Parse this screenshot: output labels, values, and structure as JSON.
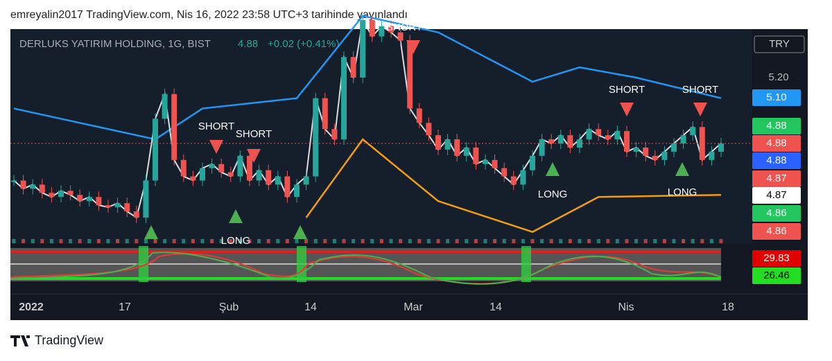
{
  "header": {
    "text": "emreyalin2017 TradingView.com, Nis 16, 2022 23:58 UTC+3 tarihinde yayınlandı"
  },
  "symbol": {
    "name": "DERLUKS YATIRIM HOLDING, 1G, BIST",
    "price": "4.88",
    "change": "+0.02 (+0.41%)"
  },
  "currency": "TRY",
  "price_axis": {
    "ticks": [
      "5.20"
    ]
  },
  "price_labels": [
    "5.10",
    "4.88",
    "4.88",
    "4.88",
    "4.87",
    "4.87",
    "4.86",
    "4.86"
  ],
  "indicator_labels": [
    "29.83",
    "26.46"
  ],
  "time_axis": [
    "2022",
    "17",
    "Şub",
    "14",
    "Mar",
    "14",
    "Nis",
    "18"
  ],
  "signals": [
    "SHORT",
    "SHORT",
    "SHORT",
    "SHORT",
    "SHORT",
    "LONG",
    "LONG",
    "LONG"
  ],
  "closes": [
    4.7,
    4.66,
    4.68,
    4.64,
    4.62,
    4.65,
    4.63,
    4.6,
    4.62,
    4.58,
    4.57,
    4.59,
    4.55,
    4.52,
    4.7,
    5.0,
    5.12,
    4.8,
    4.72,
    4.7,
    4.76,
    4.78,
    4.74,
    4.72,
    4.82,
    4.7,
    4.75,
    4.68,
    4.72,
    4.62,
    4.68,
    4.72,
    5.1,
    4.95,
    4.9,
    5.3,
    5.2,
    5.48,
    5.4,
    5.45,
    5.42,
    5.38,
    5.05,
    4.98,
    4.92,
    4.85,
    4.9,
    4.82,
    4.86,
    4.78,
    4.8,
    4.76,
    4.72,
    4.68,
    4.75,
    4.82,
    4.9,
    4.88,
    4.92,
    4.86,
    4.9,
    4.95,
    4.92,
    4.9,
    4.94,
    4.84,
    4.86,
    4.82,
    4.8,
    4.84,
    4.88,
    4.92,
    4.96,
    4.8,
    4.84,
    4.88
  ],
  "upper_band": {
    "index": [
      0,
      15,
      20,
      30,
      37,
      45,
      55,
      60,
      66,
      75
    ],
    "values": [
      5.05,
      4.9,
      5.05,
      5.1,
      5.5,
      5.42,
      5.18,
      5.25,
      5.2,
      5.1
    ]
  },
  "lower_band": {
    "index": [
      31,
      37,
      45,
      55,
      62,
      75
    ],
    "values": [
      4.52,
      4.9,
      4.6,
      4.45,
      4.62,
      4.63
    ]
  },
  "footer": {
    "brand": "TradingView"
  }
}
